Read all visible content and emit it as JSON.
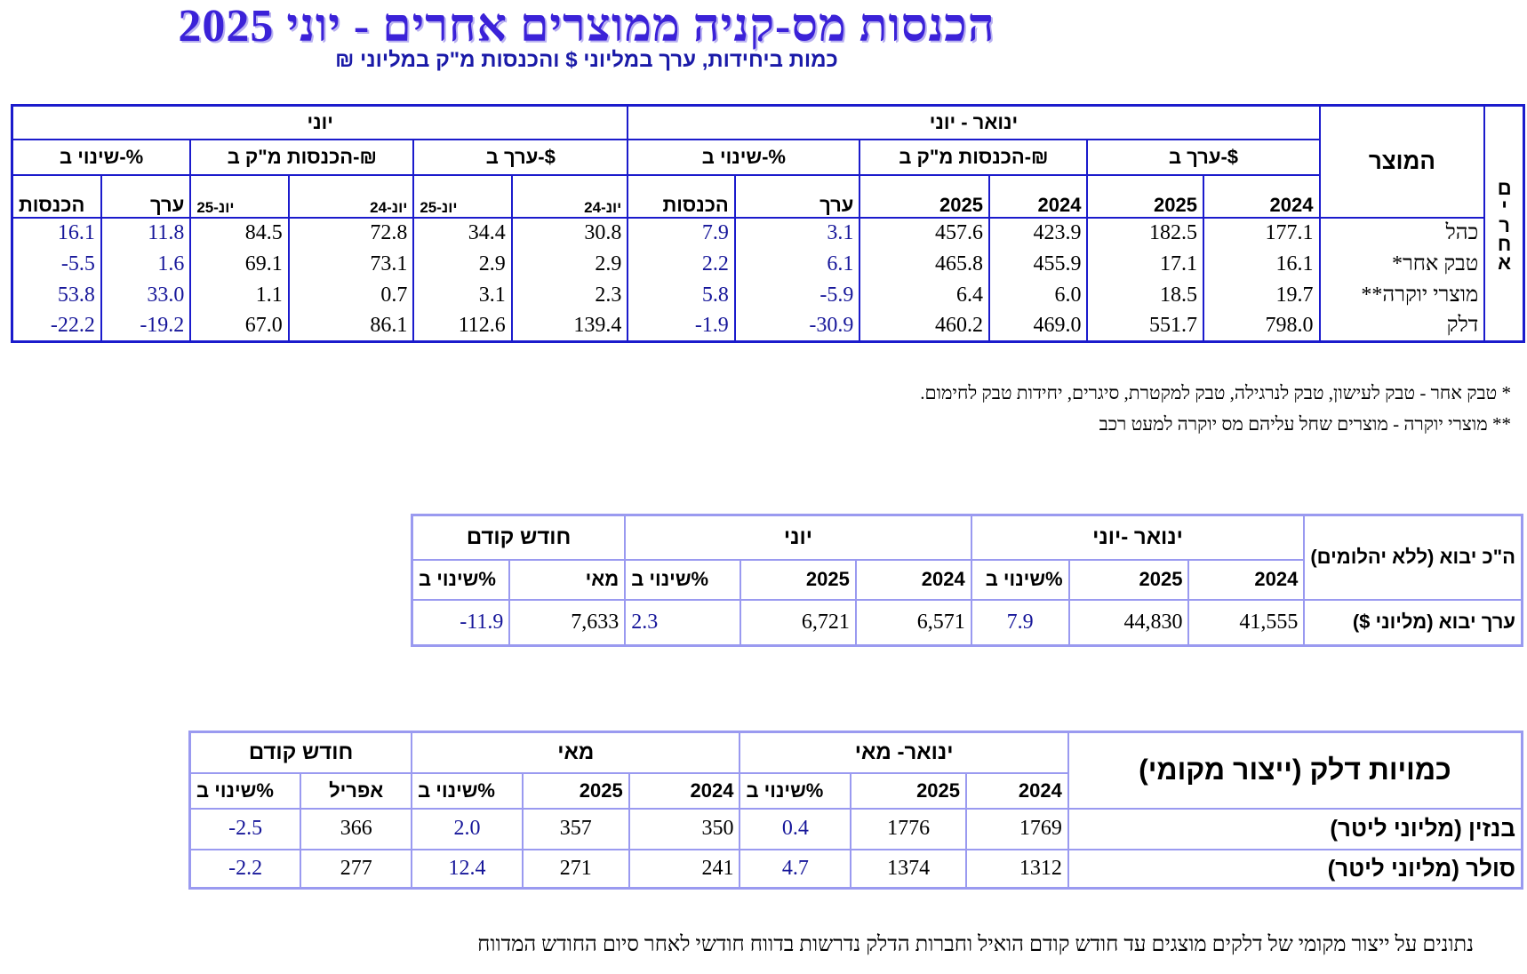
{
  "header": {
    "title": "הכנסות מס-קניה ממוצרים אחרים - יוני 2025",
    "subtitle": "כמות ביחידות, ערך במליוני $ והכנסות מ\"ק במליוני ₪"
  },
  "main_table": {
    "side_label": "אחרים",
    "product_header": "המוצר",
    "group_cum": "ינואר - יוני",
    "group_month": "יוני",
    "sub_value_usd": "ערך ב-$",
    "sub_revenue_ils": "הכנסות מ\"ק ב-₪",
    "sub_change_pct": "שינוי ב-%",
    "sub_revenue_ils_month": "הכנסות מ\"ק ב-₪",
    "col_2024": "2024",
    "col_2025": "2025",
    "col_value": "ערך",
    "col_revenue": "הכנסות",
    "col_jun24": "יונ-24",
    "col_jun25": "יונ-25",
    "rows": [
      {
        "product": "כהל",
        "cum_val_24": "177.1",
        "cum_val_25": "182.5",
        "cum_rev_24": "423.9",
        "cum_rev_25": "457.6",
        "cum_chg_val": "3.1",
        "cum_chg_rev": "7.9",
        "m_val_24": "30.8",
        "m_val_25": "34.4",
        "m_rev_24": "72.8",
        "m_rev_25": "84.5",
        "m_chg_val": "11.8",
        "m_chg_rev": "16.1"
      },
      {
        "product": "טבק אחר*",
        "cum_val_24": "16.1",
        "cum_val_25": "17.1",
        "cum_rev_24": "455.9",
        "cum_rev_25": "465.8",
        "cum_chg_val": "6.1",
        "cum_chg_rev": "2.2",
        "m_val_24": "2.9",
        "m_val_25": "2.9",
        "m_rev_24": "73.1",
        "m_rev_25": "69.1",
        "m_chg_val": "1.6",
        "m_chg_rev": "-5.5"
      },
      {
        "product": "מוצרי יוקרה**",
        "cum_val_24": "19.7",
        "cum_val_25": "18.5",
        "cum_rev_24": "6.0",
        "cum_rev_25": "6.4",
        "cum_chg_val": "-5.9",
        "cum_chg_rev": "5.8",
        "m_val_24": "2.3",
        "m_val_25": "3.1",
        "m_rev_24": "0.7",
        "m_rev_25": "1.1",
        "m_chg_val": "33.0",
        "m_chg_rev": "53.8"
      },
      {
        "product": "דלק",
        "cum_val_24": "798.0",
        "cum_val_25": "551.7",
        "cum_rev_24": "469.0",
        "cum_rev_25": "460.2",
        "cum_chg_val": "-30.9",
        "cum_chg_rev": "-1.9",
        "m_val_24": "139.4",
        "m_val_25": "112.6",
        "m_rev_24": "86.1",
        "m_rev_25": "67.0",
        "m_chg_val": "-19.2",
        "m_chg_rev": "-22.2"
      }
    ]
  },
  "footnotes": {
    "note1": "* טבק אחר - טבק לעישון, טבק לנרגילה, טבק למקטרת, סיגרים, יחידות טבק לחימום.",
    "note2": "** מוצרי יוקרה - מוצרים שחל עליהם מס יוקרה למעט רכב"
  },
  "import_table": {
    "header_label": "ה\"כ יבוא (ללא יהלומים)",
    "group_cum": "ינואר -יוני",
    "group_month": "יוני",
    "group_prev": "חודש קודם",
    "col_2024": "2024",
    "col_2025": "2025",
    "col_change": "שינוי ב%",
    "col_may": "מאי",
    "row_label": "ערך יבוא  (מליוני $)",
    "cum_2024": "41,555",
    "cum_2025": "44,830",
    "cum_change": "7.9",
    "m_2024": "6,571",
    "m_2025": "6,721",
    "m_change": "2.3",
    "prev_may": "7,633",
    "prev_change": "-11.9"
  },
  "fuel_table": {
    "header_label": "כמויות דלק (ייצור מקומי)",
    "group_cum": "ינואר- מאי",
    "group_month": "מאי",
    "group_prev": "חודש קודם",
    "col_2024": "2024",
    "col_2025": "2025",
    "col_change": "שינוי ב%",
    "col_april": "אפריל",
    "rows": [
      {
        "label": "בנזין (מליוני ליטר)",
        "cum_2024": "1769",
        "cum_2025": "1776",
        "cum_change": "0.4",
        "m_2024": "350",
        "m_2025": "357",
        "m_change": "2.0",
        "prev_apr": "366",
        "prev_change": "-2.5"
      },
      {
        "label": "סולר (מליוני ליטר)",
        "cum_2024": "1312",
        "cum_2025": "1374",
        "cum_change": "4.7",
        "m_2024": "241",
        "m_2025": "271",
        "m_change": "12.4",
        "prev_apr": "277",
        "prev_change": "-2.2"
      }
    ],
    "footer_note": "נתונים על ייצור מקומי של דלקים מוצגים עד חודש קודם הואיל וחברות הדלק נדרשות בדווח חודשי לאחר סיום החודש המדווח"
  }
}
